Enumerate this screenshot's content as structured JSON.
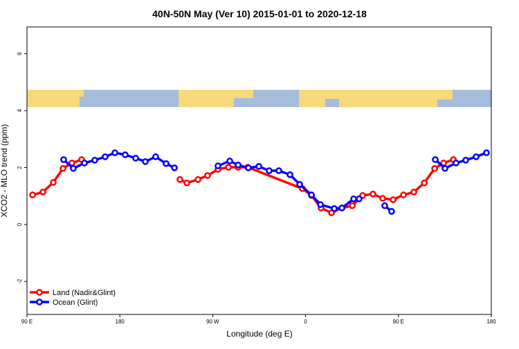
{
  "chart_data": {
    "type": "line",
    "title": "40N-50N May (Ver 10)   2015-01-01 to 2020-12-18",
    "x_label": "Longitude (deg E)",
    "y_label": "XCO2 - MLO trend (ppm)",
    "xlim": [
      90,
      540
    ],
    "ylim": [
      -3.16,
      6.94
    ],
    "xticks": [
      {
        "value": 90,
        "label": "90 E"
      },
      180,
      {
        "value": 270,
        "label": "90 W"
      },
      {
        "value": 360,
        "label": "0"
      },
      {
        "value": 450,
        "label": "90 E"
      },
      {
        "value": 540,
        "label": "180"
      }
    ],
    "yticks": [
      -2,
      0,
      2,
      4,
      6
    ],
    "legend": "bottom-left",
    "series": [
      {
        "name": "Land (Nadir&Glint)",
        "color": "#ff0000",
        "x": [
          95.4,
          105.4,
          115.5,
          124.9,
          133.6,
          143.0,
          null,
          238.2,
          244.9,
          255.7,
          265.0,
          275.1,
          285.2,
          294.6,
          304.0,
          356.9,
          365.7,
          375.0,
          385.1,
          395.2,
          405.2,
          415.3,
          425.3,
          434.7,
          444.8,
          454.9,
          464.9,
          475.0,
          485.1,
          493.8,
          503.2
        ],
        "values": [
          1.04,
          1.14,
          1.48,
          1.97,
          2.16,
          2.28,
          null,
          1.58,
          1.46,
          1.58,
          1.72,
          1.94,
          2.01,
          2.01,
          2.01,
          1.26,
          1.02,
          0.58,
          0.41,
          0.58,
          0.66,
          1.02,
          1.07,
          0.92,
          0.87,
          1.04,
          1.14,
          1.46,
          1.97,
          2.16,
          2.28
        ]
      },
      {
        "name": "Ocean (Glint)",
        "color": "#0000ff",
        "x": [
          125.5,
          134.9,
          145.7,
          155.7,
          165.8,
          175.2,
          185.2,
          195.3,
          204.7,
          214.7,
          224.8,
          232.9,
          null,
          275.1,
          286.5,
          294.6,
          304.6,
          314.7,
          324.7,
          334.1,
          344.9,
          354.3,
          365.7,
          374.4,
          387.8,
          395.2,
          406.6,
          411.9,
          null,
          436.7,
          443.4,
          null,
          485.7,
          495.1,
          505.8,
          515.2,
          525.3,
          535.3
        ],
        "values": [
          2.28,
          1.97,
          2.16,
          2.26,
          2.38,
          2.52,
          2.45,
          2.33,
          2.21,
          2.38,
          2.14,
          1.99,
          null,
          2.06,
          2.23,
          2.09,
          1.99,
          2.04,
          1.89,
          1.89,
          1.75,
          1.41,
          1.04,
          0.7,
          0.56,
          0.58,
          0.9,
          0.9,
          null,
          0.66,
          0.46,
          null,
          2.28,
          1.97,
          2.16,
          2.26,
          2.38,
          2.52
        ]
      }
    ]
  }
}
